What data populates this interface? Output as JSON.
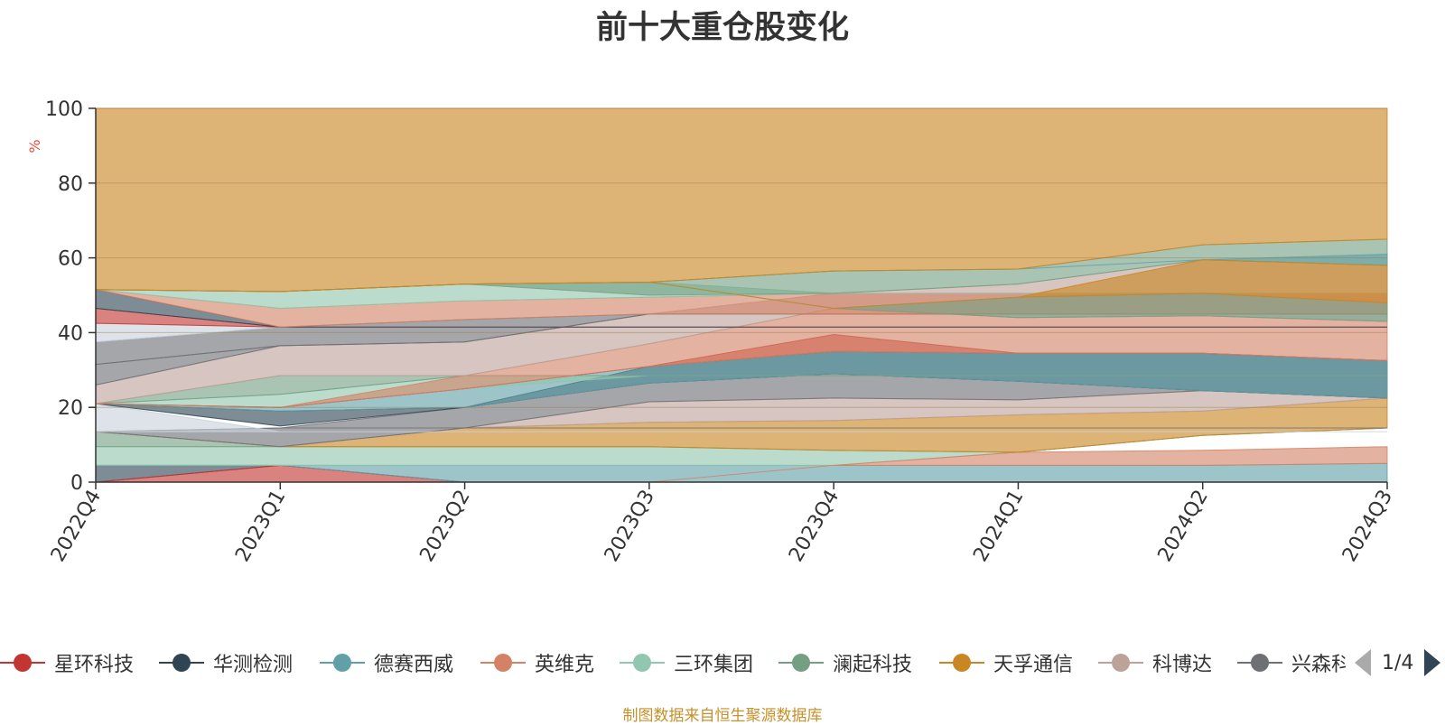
{
  "title": "前十大重仓股变化",
  "footer": "制图数据来自恒生聚源数据库",
  "legend_pager": "1/4",
  "legend": [
    {
      "name": "星环科技",
      "color": "#c23531"
    },
    {
      "name": "华测检测",
      "color": "#2f4554"
    },
    {
      "name": "德赛西威",
      "color": "#61a0a8"
    },
    {
      "name": "英维克",
      "color": "#d48265"
    },
    {
      "name": "三环集团",
      "color": "#91c7ae"
    },
    {
      "name": "澜起科技",
      "color": "#749f83"
    },
    {
      "name": "天孚通信",
      "color": "#ca8622"
    },
    {
      "name": "科博达",
      "color": "#bda29a"
    },
    {
      "name": "兴森科技",
      "color": "#6e7074"
    }
  ],
  "chart_data": {
    "type": "area",
    "title": "前十大重仓股变化",
    "ylabel": "%",
    "ylim": [
      0,
      100
    ],
    "yticks": [
      0,
      20,
      40,
      60,
      80,
      100
    ],
    "categories": [
      "2022Q4",
      "2023Q1",
      "2023Q2",
      "2023Q3",
      "2023Q4",
      "2024Q1",
      "2024Q2",
      "2024Q3"
    ],
    "bands": [
      {
        "color": "#2f4554",
        "lower": [
          0,
          4.5,
          0,
          0,
          0,
          0,
          0,
          0
        ],
        "upper": [
          4.5,
          4.5,
          0,
          0,
          0,
          0,
          0,
          0
        ]
      },
      {
        "color": "#c23531",
        "lower": [
          0,
          0,
          0,
          0,
          0,
          0,
          0,
          0
        ],
        "upper": [
          0,
          4.5,
          0,
          0,
          0,
          0,
          0,
          0
        ]
      },
      {
        "color": "#61a0a8",
        "lower": [
          4.5,
          4.5,
          0,
          0,
          0,
          0,
          0,
          0
        ],
        "upper": [
          4.5,
          4.5,
          4.5,
          4.5,
          4.5,
          4.5,
          4.5,
          5
        ]
      },
      {
        "color": "#91c7ae",
        "lower": [
          4.5,
          4.5,
          4.5,
          4.5,
          4.5,
          8,
          12.5,
          14.5
        ],
        "upper": [
          9.5,
          9.5,
          9.5,
          9.5,
          8.5,
          8,
          12.5,
          14.5
        ]
      },
      {
        "color": "#d48265",
        "lower": [
          0,
          0,
          0,
          0,
          4.5,
          4.5,
          4.5,
          5
        ],
        "upper": [
          0,
          0,
          0,
          0,
          4.5,
          8,
          8.5,
          9.5
        ]
      },
      {
        "color": "#749f83",
        "lower": [
          9.5,
          9.5,
          9.5,
          9.5,
          8.5,
          8,
          12.5,
          14.5
        ],
        "upper": [
          13.5,
          9.5,
          9.5,
          9.5,
          8.5,
          8,
          12.5,
          14.5
        ]
      },
      {
        "color": "#ca8622",
        "lower": [
          13.5,
          9.5,
          9.5,
          9.5,
          8.5,
          8,
          12.5,
          14.5
        ],
        "upper": [
          13.5,
          9.5,
          14.5,
          16,
          16.5,
          18,
          19,
          22.5
        ]
      },
      {
        "color": "#bda29a",
        "lower": [
          13.5,
          9.5,
          14.5,
          16,
          16.5,
          18,
          19,
          22.5
        ],
        "upper": [
          13.5,
          9.5,
          14.5,
          21.5,
          22.5,
          22,
          24.5,
          22.5
        ]
      },
      {
        "color": "#6e7074",
        "lower": [
          13.5,
          9.5,
          14.5,
          21.5,
          22.5,
          22,
          24.5,
          22.5
        ],
        "upper": [
          13.5,
          14.5,
          20,
          26.5,
          29,
          27,
          24.5,
          22.5
        ]
      },
      {
        "color": "#6e7074",
        "lower": [
          13.5,
          14.5,
          14.5,
          14.5,
          14.5,
          14.5,
          14.5,
          14.5
        ],
        "upper": [
          13.5,
          14.5,
          14.5,
          14.5,
          14.5,
          14.5,
          14.5,
          14.5
        ]
      },
      {
        "color": "#c8d2dc",
        "lower": [
          13.5,
          13.5,
          13.5,
          13.5,
          13.5,
          13.5,
          13.5,
          13.5
        ],
        "upper": [
          21,
          13.5,
          13.5,
          13.5,
          13.5,
          13.5,
          13.5,
          13.5
        ]
      },
      {
        "color": "#2f4554",
        "lower": [
          21,
          15,
          20,
          26.5,
          29,
          27,
          24.5,
          22.5
        ],
        "upper": [
          21,
          19,
          20,
          31,
          35,
          34.5,
          34.5,
          32.5
        ]
      },
      {
        "color": "#61a0a8",
        "lower": [
          21,
          19,
          20,
          26.5,
          29,
          27,
          24.5,
          22.5
        ],
        "upper": [
          21,
          20,
          25,
          31,
          35,
          34.5,
          34.5,
          32.5
        ]
      },
      {
        "color": "#91c7ae",
        "lower": [
          21,
          20,
          25,
          28.5,
          28.5,
          28.5,
          28.5,
          28.5
        ],
        "upper": [
          21,
          23.5,
          28.5,
          28.5,
          28.5,
          28.5,
          28.5,
          28.5
        ]
      },
      {
        "color": "#749f83",
        "lower": [
          21,
          23.5,
          28.5,
          28.5,
          28.5,
          28.5,
          28.5,
          28.5
        ],
        "upper": [
          21,
          28.5,
          28.5,
          28.5,
          28.5,
          28.5,
          28.5,
          28.5
        ]
      },
      {
        "color": "#c23531",
        "lower": [
          21,
          20,
          25,
          31,
          35,
          34.5,
          34.5,
          32.5
        ],
        "upper": [
          21,
          20,
          25,
          31,
          39.5,
          34.5,
          34.5,
          32.5
        ]
      },
      {
        "color": "#d48265",
        "lower": [
          21,
          20,
          25,
          31,
          35,
          34.5,
          34.5,
          32.5
        ],
        "upper": [
          21,
          20,
          28.5,
          37,
          46.5,
          44,
          44.5,
          43
        ]
      },
      {
        "color": "#bda29a",
        "lower": [
          21,
          28.5,
          28.5,
          37,
          46.5,
          44,
          44.5,
          43
        ],
        "upper": [
          26,
          36.5,
          37.5,
          45,
          50.5,
          53,
          59.5,
          58
        ]
      },
      {
        "color": "#6e7074",
        "lower": [
          26,
          36.5,
          37.5,
          45,
          45,
          45,
          45,
          45
        ],
        "upper": [
          31.5,
          36.5,
          37.5,
          45,
          45,
          45,
          45,
          45
        ]
      },
      {
        "color": "#6e7074",
        "lower": [
          31.5,
          36.5,
          37.5,
          45,
          45,
          45,
          45,
          45
        ],
        "upper": [
          37.5,
          41.5,
          43.5,
          45,
          45,
          45,
          45,
          45
        ]
      },
      {
        "color": "#c8d2dc",
        "lower": [
          37.5,
          41.5,
          41.5,
          41.5,
          41.5,
          41.5,
          41.5,
          41.5
        ],
        "upper": [
          42.5,
          41.5,
          41.5,
          41.5,
          41.5,
          41.5,
          41.5,
          41.5
        ]
      },
      {
        "color": "#c23531",
        "lower": [
          42.5,
          41.5,
          41.5,
          41.5,
          41.5,
          41.5,
          41.5,
          41.5
        ],
        "upper": [
          46.5,
          41.5,
          41.5,
          41.5,
          41.5,
          41.5,
          41.5,
          41.5
        ]
      },
      {
        "color": "#2f4554",
        "lower": [
          46.5,
          41.5,
          41.5,
          41.5,
          41.5,
          41.5,
          41.5,
          41.5
        ],
        "upper": [
          51.5,
          41.5,
          41.5,
          41.5,
          41.5,
          41.5,
          41.5,
          41.5
        ]
      },
      {
        "color": "#d48265",
        "lower": [
          51.5,
          41.5,
          43.5,
          45,
          45,
          45,
          45,
          45
        ],
        "upper": [
          51.5,
          46.5,
          48.5,
          49.5,
          50.5,
          50.5,
          50.5,
          50.5
        ]
      },
      {
        "color": "#91c7ae",
        "lower": [
          51.5,
          46.5,
          48.5,
          49.5,
          50.5,
          50.5,
          50.5,
          50.5
        ],
        "upper": [
          51.5,
          51,
          53,
          53.5,
          50.5,
          50.5,
          50.5,
          50.5
        ]
      },
      {
        "color": "#749f83",
        "lower": [
          51.5,
          51,
          53,
          50,
          50.5,
          53,
          59.5,
          58
        ],
        "upper": [
          51.5,
          51,
          53,
          53.5,
          56.5,
          57,
          63.5,
          65
        ]
      },
      {
        "color": "#749f83",
        "lower": [
          51.5,
          51,
          53,
          53.5,
          46.5,
          44,
          44.5,
          43
        ],
        "upper": [
          51.5,
          51,
          53,
          53.5,
          46.5,
          49.5,
          50.5,
          48
        ]
      },
      {
        "color": "#61a0a8",
        "lower": [
          51.5,
          51,
          53,
          53.5,
          56.5,
          57,
          59.5,
          58
        ],
        "upper": [
          51.5,
          51,
          53,
          53.5,
          56.5,
          57,
          59.5,
          61
        ]
      },
      {
        "color": "#ca8622",
        "lower": [
          51.5,
          51,
          53,
          53.5,
          46.5,
          49.5,
          50.5,
          48
        ],
        "upper": [
          51.5,
          51,
          53,
          53.5,
          46.5,
          49.5,
          59.5,
          58
        ]
      },
      {
        "color": "#ca8622",
        "lower": [
          51.5,
          51,
          53,
          53.5,
          56.5,
          57,
          63.5,
          65
        ],
        "upper": [
          100,
          100,
          100,
          100,
          100,
          100,
          100,
          100
        ]
      }
    ]
  }
}
